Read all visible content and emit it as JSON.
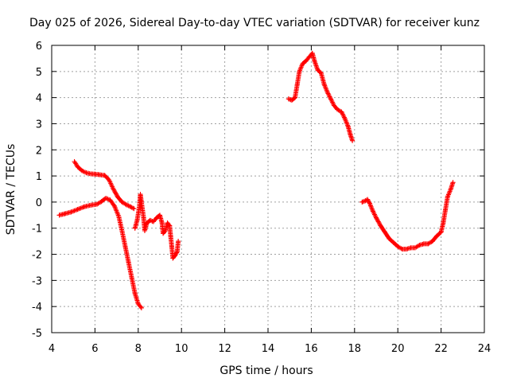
{
  "chart_data": {
    "type": "scatter",
    "title": "Day 025 of 2026, Sidereal Day-to-day VTEC variation (SDTVAR) for receiver kunz",
    "xlabel": "GPS time / hours",
    "ylabel": "SDTVAR / TECUs",
    "xlim": [
      4,
      24
    ],
    "ylim": [
      -5,
      6
    ],
    "xticks": [
      "4",
      "6",
      "8",
      "10",
      "12",
      "14",
      "16",
      "18",
      "20",
      "22",
      "24"
    ],
    "yticks": [
      "-5",
      "-4",
      "-3",
      "-2",
      "-1",
      "0",
      "1",
      "2",
      "3",
      "4",
      "5",
      "6"
    ],
    "grid": true,
    "marker": "plus",
    "color": "#ff0000",
    "series": [
      {
        "points": [
          [
            4.35,
            -0.5
          ],
          [
            4.6,
            -0.45
          ],
          [
            4.9,
            -0.38
          ],
          [
            5.2,
            -0.28
          ],
          [
            5.5,
            -0.18
          ],
          [
            5.8,
            -0.12
          ],
          [
            6.1,
            -0.08
          ],
          [
            6.3,
            0.02
          ],
          [
            6.5,
            0.15
          ],
          [
            6.7,
            0.08
          ],
          [
            6.9,
            -0.15
          ],
          [
            7.1,
            -0.55
          ],
          [
            7.25,
            -1.1
          ],
          [
            7.4,
            -1.7
          ],
          [
            7.55,
            -2.3
          ],
          [
            7.7,
            -2.9
          ],
          [
            7.85,
            -3.5
          ],
          [
            8.0,
            -3.9
          ],
          [
            8.15,
            -4.05
          ]
        ]
      },
      {
        "points": [
          [
            5.05,
            1.55
          ],
          [
            5.2,
            1.35
          ],
          [
            5.4,
            1.2
          ],
          [
            5.6,
            1.12
          ],
          [
            5.8,
            1.08
          ],
          [
            6.0,
            1.07
          ],
          [
            6.2,
            1.05
          ],
          [
            6.45,
            1.02
          ],
          [
            6.65,
            0.85
          ],
          [
            6.85,
            0.5
          ],
          [
            7.05,
            0.2
          ],
          [
            7.25,
            0.0
          ],
          [
            7.45,
            -0.1
          ],
          [
            7.65,
            -0.18
          ],
          [
            7.8,
            -0.25
          ]
        ]
      },
      {
        "points": [
          [
            7.85,
            -1.0
          ],
          [
            7.95,
            -0.7
          ],
          [
            8.05,
            -0.2
          ],
          [
            8.1,
            0.3
          ],
          [
            8.15,
            0.0
          ],
          [
            8.25,
            -0.6
          ],
          [
            8.3,
            -1.1
          ],
          [
            8.4,
            -0.8
          ],
          [
            8.55,
            -0.7
          ],
          [
            8.7,
            -0.75
          ],
          [
            8.85,
            -0.6
          ],
          [
            9.0,
            -0.5
          ],
          [
            9.1,
            -0.8
          ],
          [
            9.15,
            -1.2
          ],
          [
            9.25,
            -1.1
          ],
          [
            9.35,
            -0.8
          ],
          [
            9.45,
            -0.9
          ],
          [
            9.5,
            -1.3
          ],
          [
            9.55,
            -1.7
          ],
          [
            9.6,
            -2.15
          ],
          [
            9.7,
            -2.05
          ],
          [
            9.8,
            -1.9
          ],
          [
            9.85,
            -1.5
          ]
        ]
      },
      {
        "points": [
          [
            14.95,
            3.95
          ],
          [
            15.1,
            3.9
          ],
          [
            15.25,
            4.0
          ],
          [
            15.35,
            4.5
          ],
          [
            15.45,
            5.0
          ],
          [
            15.6,
            5.3
          ],
          [
            15.75,
            5.4
          ],
          [
            15.9,
            5.55
          ],
          [
            16.05,
            5.7
          ],
          [
            16.15,
            5.4
          ],
          [
            16.3,
            5.05
          ],
          [
            16.45,
            4.95
          ],
          [
            16.6,
            4.5
          ],
          [
            16.75,
            4.2
          ],
          [
            16.9,
            3.95
          ],
          [
            17.05,
            3.7
          ],
          [
            17.2,
            3.55
          ],
          [
            17.4,
            3.45
          ],
          [
            17.55,
            3.2
          ],
          [
            17.7,
            2.9
          ],
          [
            17.8,
            2.6
          ],
          [
            17.9,
            2.35
          ]
        ]
      },
      {
        "points": [
          [
            18.35,
            0.0
          ],
          [
            18.5,
            0.05
          ],
          [
            18.6,
            0.1
          ],
          [
            18.7,
            -0.05
          ],
          [
            18.85,
            -0.35
          ],
          [
            19.0,
            -0.6
          ],
          [
            19.2,
            -0.9
          ],
          [
            19.4,
            -1.15
          ],
          [
            19.6,
            -1.4
          ],
          [
            19.8,
            -1.55
          ],
          [
            20.0,
            -1.7
          ],
          [
            20.2,
            -1.8
          ],
          [
            20.4,
            -1.8
          ],
          [
            20.6,
            -1.75
          ],
          [
            20.8,
            -1.75
          ],
          [
            21.0,
            -1.65
          ],
          [
            21.2,
            -1.6
          ],
          [
            21.4,
            -1.6
          ],
          [
            21.6,
            -1.5
          ],
          [
            21.8,
            -1.3
          ],
          [
            22.0,
            -1.15
          ],
          [
            22.1,
            -0.8
          ],
          [
            22.2,
            -0.3
          ],
          [
            22.3,
            0.2
          ],
          [
            22.45,
            0.5
          ],
          [
            22.55,
            0.75
          ]
        ]
      }
    ]
  }
}
